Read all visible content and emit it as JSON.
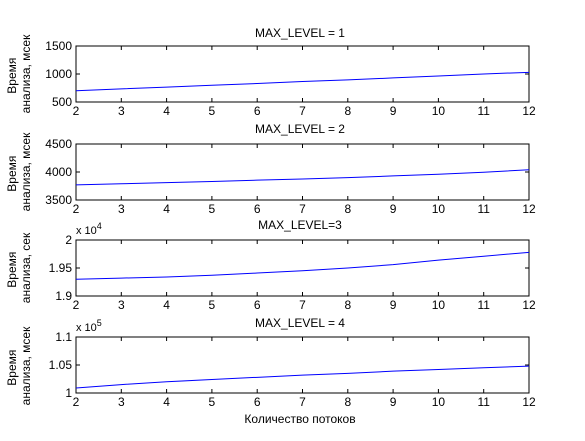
{
  "chart_data": [
    {
      "type": "line",
      "title": "MAX_LEVEL = 1",
      "ylabel": [
        "Время",
        "анализа, мсек"
      ],
      "xlabel": "",
      "exponent": "",
      "xlim": [
        2,
        12
      ],
      "ylim": [
        500,
        1500
      ],
      "xticks": [
        2,
        3,
        4,
        5,
        6,
        7,
        8,
        9,
        10,
        11,
        12
      ],
      "yticks": [
        500,
        1000,
        1500
      ],
      "ytick_labels": [
        "500",
        "1000",
        "1500"
      ],
      "grid": false,
      "series": [
        {
          "color": "#0000ff",
          "x": [
            2,
            3,
            4,
            5,
            6,
            7,
            8,
            9,
            10,
            11,
            12
          ],
          "y": [
            700,
            735,
            765,
            800,
            830,
            865,
            895,
            930,
            965,
            1000,
            1030
          ]
        }
      ]
    },
    {
      "type": "line",
      "title": "MAX_LEVEL = 2",
      "ylabel": [
        "Время",
        "анализа, мсек"
      ],
      "xlabel": "",
      "exponent": "",
      "xlim": [
        2,
        12
      ],
      "ylim": [
        3500,
        4500
      ],
      "xticks": [
        2,
        3,
        4,
        5,
        6,
        7,
        8,
        9,
        10,
        11,
        12
      ],
      "yticks": [
        3500,
        4000,
        4500
      ],
      "ytick_labels": [
        "3500",
        "4000",
        "4500"
      ],
      "grid": false,
      "series": [
        {
          "color": "#0000ff",
          "x": [
            2,
            3,
            4,
            5,
            6,
            7,
            8,
            9,
            10,
            11,
            12
          ],
          "y": [
            3770,
            3790,
            3810,
            3830,
            3855,
            3875,
            3900,
            3930,
            3960,
            3995,
            4040
          ]
        }
      ]
    },
    {
      "type": "line",
      "title": "MAX_LEVEL=3",
      "ylabel": [
        "Время",
        "анализа, сек"
      ],
      "xlabel": "",
      "exponent": "x 10^4",
      "exponent_base": "x 10",
      "exponent_power": "4",
      "xlim": [
        2,
        12
      ],
      "ylim": [
        1.9,
        2.0
      ],
      "xticks": [
        2,
        3,
        4,
        5,
        6,
        7,
        8,
        9,
        10,
        11,
        12
      ],
      "yticks": [
        1.9,
        1.95,
        2.0
      ],
      "ytick_labels": [
        "1.9",
        "1.95",
        "2"
      ],
      "grid": false,
      "series": [
        {
          "color": "#0000ff",
          "x": [
            2,
            3,
            4,
            5,
            6,
            7,
            8,
            9,
            10,
            11,
            12
          ],
          "y": [
            1.93,
            1.932,
            1.934,
            1.937,
            1.941,
            1.945,
            1.95,
            1.956,
            1.964,
            1.971,
            1.978
          ]
        }
      ]
    },
    {
      "type": "line",
      "title": "MAX_LEVEL = 4",
      "ylabel": [
        "Время",
        "анализа, мсек"
      ],
      "xlabel": "Количество потоков",
      "exponent": "x 10^5",
      "exponent_base": "x 10",
      "exponent_power": "5",
      "xlim": [
        2,
        12
      ],
      "ylim": [
        1.0,
        1.1
      ],
      "xticks": [
        2,
        3,
        4,
        5,
        6,
        7,
        8,
        9,
        10,
        11,
        12
      ],
      "yticks": [
        1.0,
        1.05,
        1.1
      ],
      "ytick_labels": [
        "1",
        "1.05",
        "1.1"
      ],
      "grid": false,
      "series": [
        {
          "color": "#0000ff",
          "x": [
            2,
            3,
            4,
            5,
            6,
            7,
            8,
            9,
            10,
            11,
            12
          ],
          "y": [
            1.009,
            1.015,
            1.02,
            1.024,
            1.028,
            1.032,
            1.035,
            1.039,
            1.042,
            1.045,
            1.048
          ]
        }
      ]
    }
  ]
}
